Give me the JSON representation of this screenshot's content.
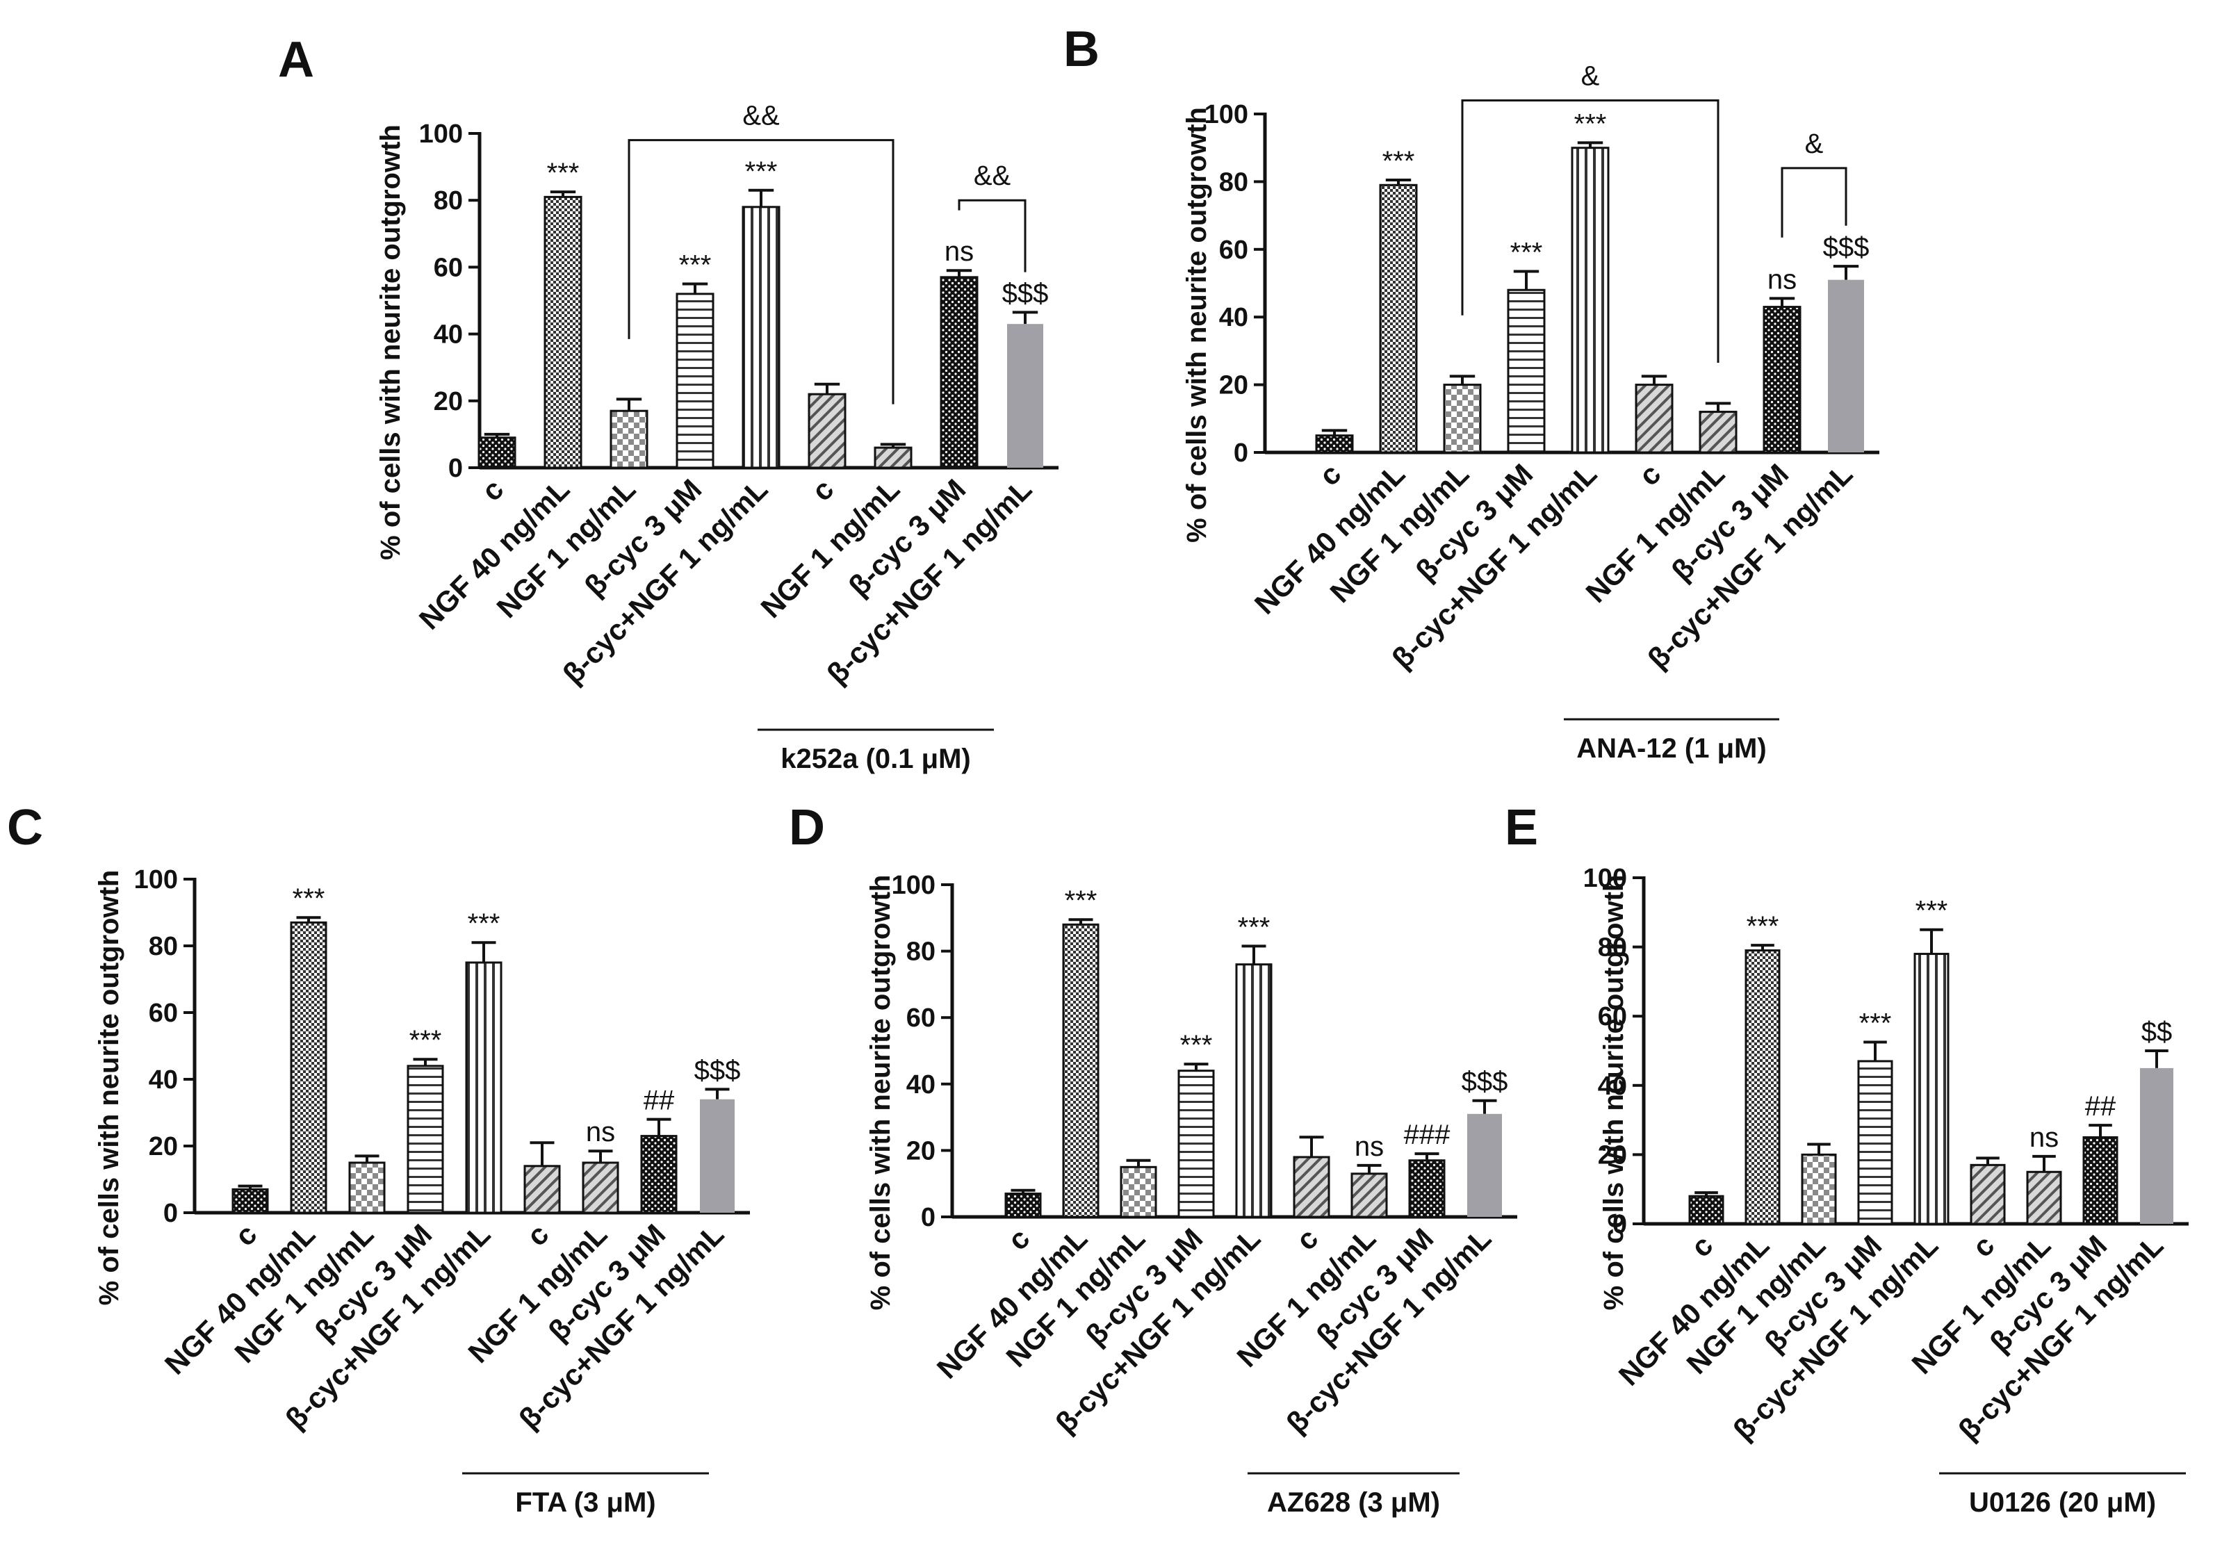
{
  "figure": {
    "colors": {
      "ink": "#111111",
      "gray_bar": "#a0a0a6",
      "bar_fill": "#ffffff"
    },
    "categories": [
      "c",
      "NGF 40 ng/mL",
      "NGF 1 ng/mL",
      "β-cyc 3 μM",
      "β-cyc+NGF 1 ng/mL",
      "c",
      "NGF 1 ng/mL",
      "β-cyc 3 μM",
      "β-cyc+NGF 1 ng/mL"
    ]
  },
  "chart_data": [
    {
      "type": "bar",
      "panel": "A",
      "ylabel": "% of cells with neurite outgrowth",
      "ylim": [
        0,
        100
      ],
      "yticks": [
        0,
        20,
        40,
        60,
        80,
        100
      ],
      "inhibitor": "k252a (0.1 μM)",
      "values": [
        9,
        81,
        17,
        52,
        78,
        22,
        6,
        57,
        43
      ],
      "errors": [
        1,
        1.5,
        3.5,
        3,
        5,
        3,
        1,
        2,
        3.5
      ],
      "patterns": [
        "dots",
        "checker",
        "bigcheck",
        "hlines",
        "vlines",
        "diag",
        "diag",
        "dots",
        "gray"
      ],
      "annotations": [
        "",
        "***",
        "",
        "***",
        "***",
        "",
        "",
        "ns",
        "$$$"
      ],
      "brackets": [
        {
          "from": 2,
          "to": 6,
          "label": "&&",
          "level": 98
        },
        {
          "from": 7,
          "to": 8,
          "label": "&&",
          "level": 80
        }
      ]
    },
    {
      "type": "bar",
      "panel": "B",
      "ylabel": "% of cells with neurite outgrowth",
      "ylim": [
        0,
        100
      ],
      "yticks": [
        0,
        20,
        40,
        60,
        80,
        100
      ],
      "inhibitor": "ANA-12 (1 μM)",
      "values": [
        5,
        79,
        20,
        48,
        90,
        20,
        12,
        43,
        51
      ],
      "errors": [
        1.5,
        1.5,
        2.5,
        5.5,
        1.5,
        2.5,
        2.5,
        2.5,
        4
      ],
      "patterns": [
        "dots",
        "checker",
        "bigcheck",
        "hlines",
        "vlines",
        "diag",
        "diag",
        "dots",
        "gray"
      ],
      "annotations": [
        "",
        "***",
        "",
        "***",
        "***",
        "",
        "",
        "ns",
        "$$$"
      ],
      "brackets": [
        {
          "from": 2,
          "to": 6,
          "label": "&",
          "level": 104
        },
        {
          "from": 7,
          "to": 8,
          "label": "&",
          "level": 84
        }
      ]
    },
    {
      "type": "bar",
      "panel": "C",
      "ylabel": "% of cells with neurite outgrowth",
      "ylim": [
        0,
        100
      ],
      "yticks": [
        0,
        20,
        40,
        60,
        80,
        100
      ],
      "inhibitor": "FTA (3 μM)",
      "values": [
        7,
        87,
        15,
        44,
        75,
        14,
        15,
        23,
        34
      ],
      "errors": [
        1,
        1.5,
        2,
        2,
        6,
        7,
        3.5,
        5,
        3
      ],
      "patterns": [
        "dots",
        "checker",
        "bigcheck",
        "hlines",
        "vlines",
        "diag",
        "diag",
        "dots",
        "gray"
      ],
      "annotations": [
        "",
        "***",
        "",
        "***",
        "***",
        "",
        "ns",
        "##",
        "$$$"
      ],
      "brackets": []
    },
    {
      "type": "bar",
      "panel": "D",
      "ylabel": "% of cells with neurite outgrowth",
      "ylim": [
        0,
        100
      ],
      "yticks": [
        0,
        20,
        40,
        60,
        80,
        100
      ],
      "inhibitor": "AZ628 (3 μM)",
      "values": [
        7,
        88,
        15,
        44,
        76,
        18,
        13,
        17,
        31
      ],
      "errors": [
        1,
        1.5,
        2,
        2,
        5.5,
        6,
        2.5,
        2,
        4
      ],
      "patterns": [
        "dots",
        "checker",
        "bigcheck",
        "hlines",
        "vlines",
        "diag",
        "diag",
        "dots",
        "gray"
      ],
      "annotations": [
        "",
        "***",
        "",
        "***",
        "***",
        "",
        "ns",
        "###",
        "$$$"
      ],
      "brackets": []
    },
    {
      "type": "bar",
      "panel": "E",
      "ylabel": "% of cells with neurite outgrowth",
      "ylim": [
        0,
        100
      ],
      "yticks": [
        0,
        20,
        40,
        60,
        80,
        100
      ],
      "inhibitor": "U0126 (20 μM)",
      "values": [
        8,
        79,
        20,
        47,
        78,
        17,
        15,
        25,
        45
      ],
      "errors": [
        1,
        1.5,
        3,
        5.5,
        7,
        2,
        4.5,
        3.5,
        5
      ],
      "patterns": [
        "dots",
        "checker",
        "bigcheck",
        "hlines",
        "vlines",
        "diag",
        "diag",
        "dots",
        "gray"
      ],
      "annotations": [
        "",
        "***",
        "",
        "***",
        "***",
        "",
        "ns",
        "##",
        "$$"
      ],
      "brackets": []
    }
  ]
}
